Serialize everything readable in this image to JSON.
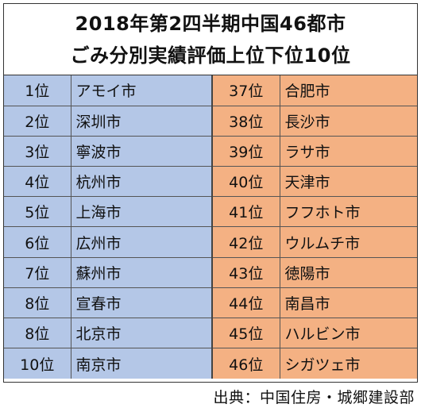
{
  "title": {
    "line1": "2018年第2四半期中国46都市",
    "line2": "ごみ分別実績評価上位下位10位"
  },
  "colors": {
    "top": "#b4c7e7",
    "bottom": "#f4b183"
  },
  "rows": [
    {
      "top_rank": "1位",
      "top_city": "アモイ市",
      "bottom_rank": "37位",
      "bottom_city": "合肥市"
    },
    {
      "top_rank": "2位",
      "top_city": "深圳市",
      "bottom_rank": "38位",
      "bottom_city": "長沙市"
    },
    {
      "top_rank": "3位",
      "top_city": "寧波市",
      "bottom_rank": "39位",
      "bottom_city": "ラサ市"
    },
    {
      "top_rank": "4位",
      "top_city": "杭州市",
      "bottom_rank": "40位",
      "bottom_city": "天津市"
    },
    {
      "top_rank": "5位",
      "top_city": "上海市",
      "bottom_rank": "41位",
      "bottom_city": "フフホト市"
    },
    {
      "top_rank": "6位",
      "top_city": "広州市",
      "bottom_rank": "42位",
      "bottom_city": "ウルムチ市"
    },
    {
      "top_rank": "7位",
      "top_city": "蘇州市",
      "bottom_rank": "43位",
      "bottom_city": "徳陽市"
    },
    {
      "top_rank": "8位",
      "top_city": "宣春市",
      "bottom_rank": "44位",
      "bottom_city": "南昌市"
    },
    {
      "top_rank": "8位",
      "top_city": "北京市",
      "bottom_rank": "45位",
      "bottom_city": "ハルビン市"
    },
    {
      "top_rank": "10位",
      "top_city": "南京市",
      "bottom_rank": "46位",
      "bottom_city": "シガツェ市"
    }
  ],
  "source": "出典：中国住房・城郷建設部"
}
